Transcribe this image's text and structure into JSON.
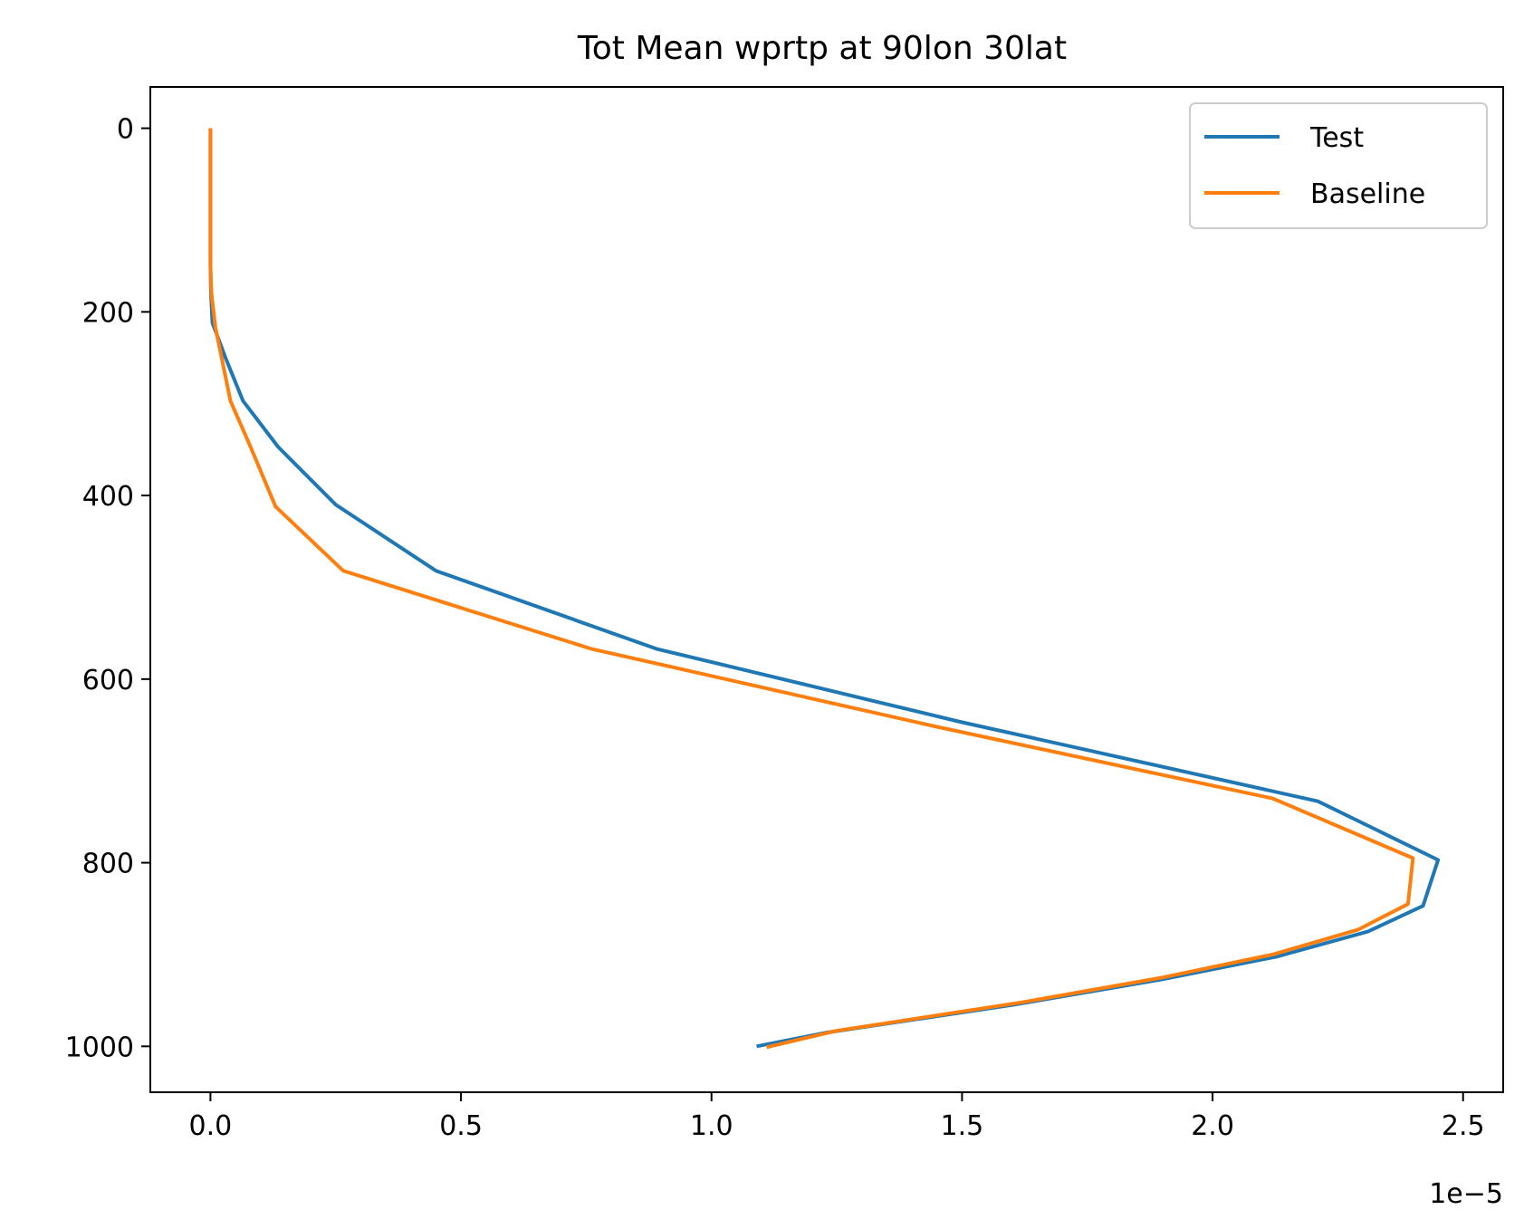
{
  "chart_data": {
    "type": "line",
    "title": "Tot Mean wprtp at 90lon 30lat",
    "xlabel": "",
    "ylabel": "",
    "x_offset_label": "1e−5",
    "x_scale": 1e-05,
    "xlim": [
      -0.12,
      2.58
    ],
    "ylim": [
      1050,
      -45
    ],
    "y_inverted": true,
    "x_ticks": [
      0.0,
      0.5,
      1.0,
      1.5,
      2.0,
      2.5
    ],
    "x_tick_labels": [
      "0.0",
      "0.5",
      "1.0",
      "1.5",
      "2.0",
      "2.5"
    ],
    "y_ticks": [
      0,
      200,
      400,
      600,
      800,
      1000
    ],
    "y_tick_labels": [
      "0",
      "200",
      "400",
      "600",
      "800",
      "1000"
    ],
    "grid": false,
    "legend": "top-right",
    "series": [
      {
        "name": "Test",
        "color": "#1f77b4",
        "x": [
          0.0,
          0.0,
          0.0,
          0.0,
          0.001,
          0.004,
          0.03,
          0.065,
          0.135,
          0.25,
          0.45,
          0.89,
          1.5,
          2.21,
          2.45,
          2.42,
          2.31,
          2.13,
          1.9,
          1.6,
          1.23,
          1.09
        ],
        "y": [
          0,
          50,
          100,
          150,
          180,
          212,
          250,
          297,
          347,
          410,
          482,
          567,
          647,
          733,
          797,
          847,
          875,
          902,
          927,
          955,
          985,
          1000
        ]
      },
      {
        "name": "Baseline",
        "color": "#ff7f0e",
        "x": [
          0.0,
          0.0,
          0.0,
          0.0,
          0.002,
          0.01,
          0.025,
          0.04,
          0.08,
          0.13,
          0.265,
          0.76,
          1.45,
          2.12,
          2.4,
          2.39,
          2.29,
          2.12,
          1.9,
          1.62,
          1.25,
          1.11
        ],
        "y": [
          0,
          50,
          100,
          150,
          180,
          217,
          257,
          297,
          347,
          412,
          482,
          567,
          652,
          730,
          795,
          845,
          873,
          900,
          925,
          952,
          983,
          1001
        ]
      }
    ]
  }
}
